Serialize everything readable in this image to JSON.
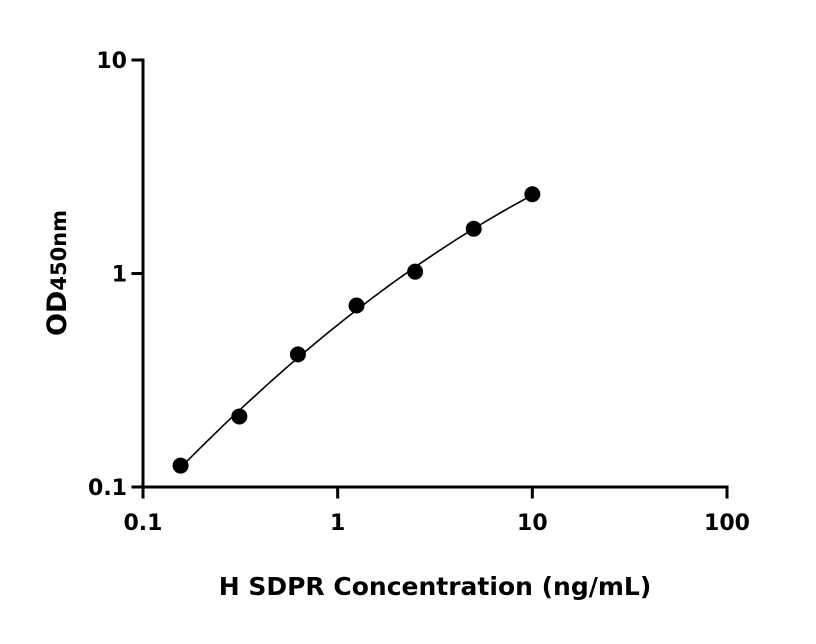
{
  "chart_data": {
    "type": "scatter",
    "title": "",
    "xlabel": "H SDPR Concentration (ng/mL)",
    "ylabel_main": "OD",
    "ylabel_sub": "450nm",
    "x_scale": "log",
    "y_scale": "log",
    "xlim": [
      0.1,
      100
    ],
    "ylim": [
      0.1,
      10
    ],
    "x_ticks": [
      "0.1",
      "1",
      "10",
      "100"
    ],
    "y_ticks": [
      "0.1",
      "1",
      "10"
    ],
    "grid": false,
    "legend": "none",
    "fit_curve": true,
    "points": [
      {
        "x": 0.156,
        "y": 0.126
      },
      {
        "x": 0.3125,
        "y": 0.214
      },
      {
        "x": 0.625,
        "y": 0.418
      },
      {
        "x": 1.25,
        "y": 0.708
      },
      {
        "x": 2.5,
        "y": 1.02
      },
      {
        "x": 5,
        "y": 1.62
      },
      {
        "x": 10,
        "y": 2.35
      }
    ],
    "colors": {
      "points": "#000000",
      "curve": "#000000",
      "axes": "#000000"
    }
  }
}
